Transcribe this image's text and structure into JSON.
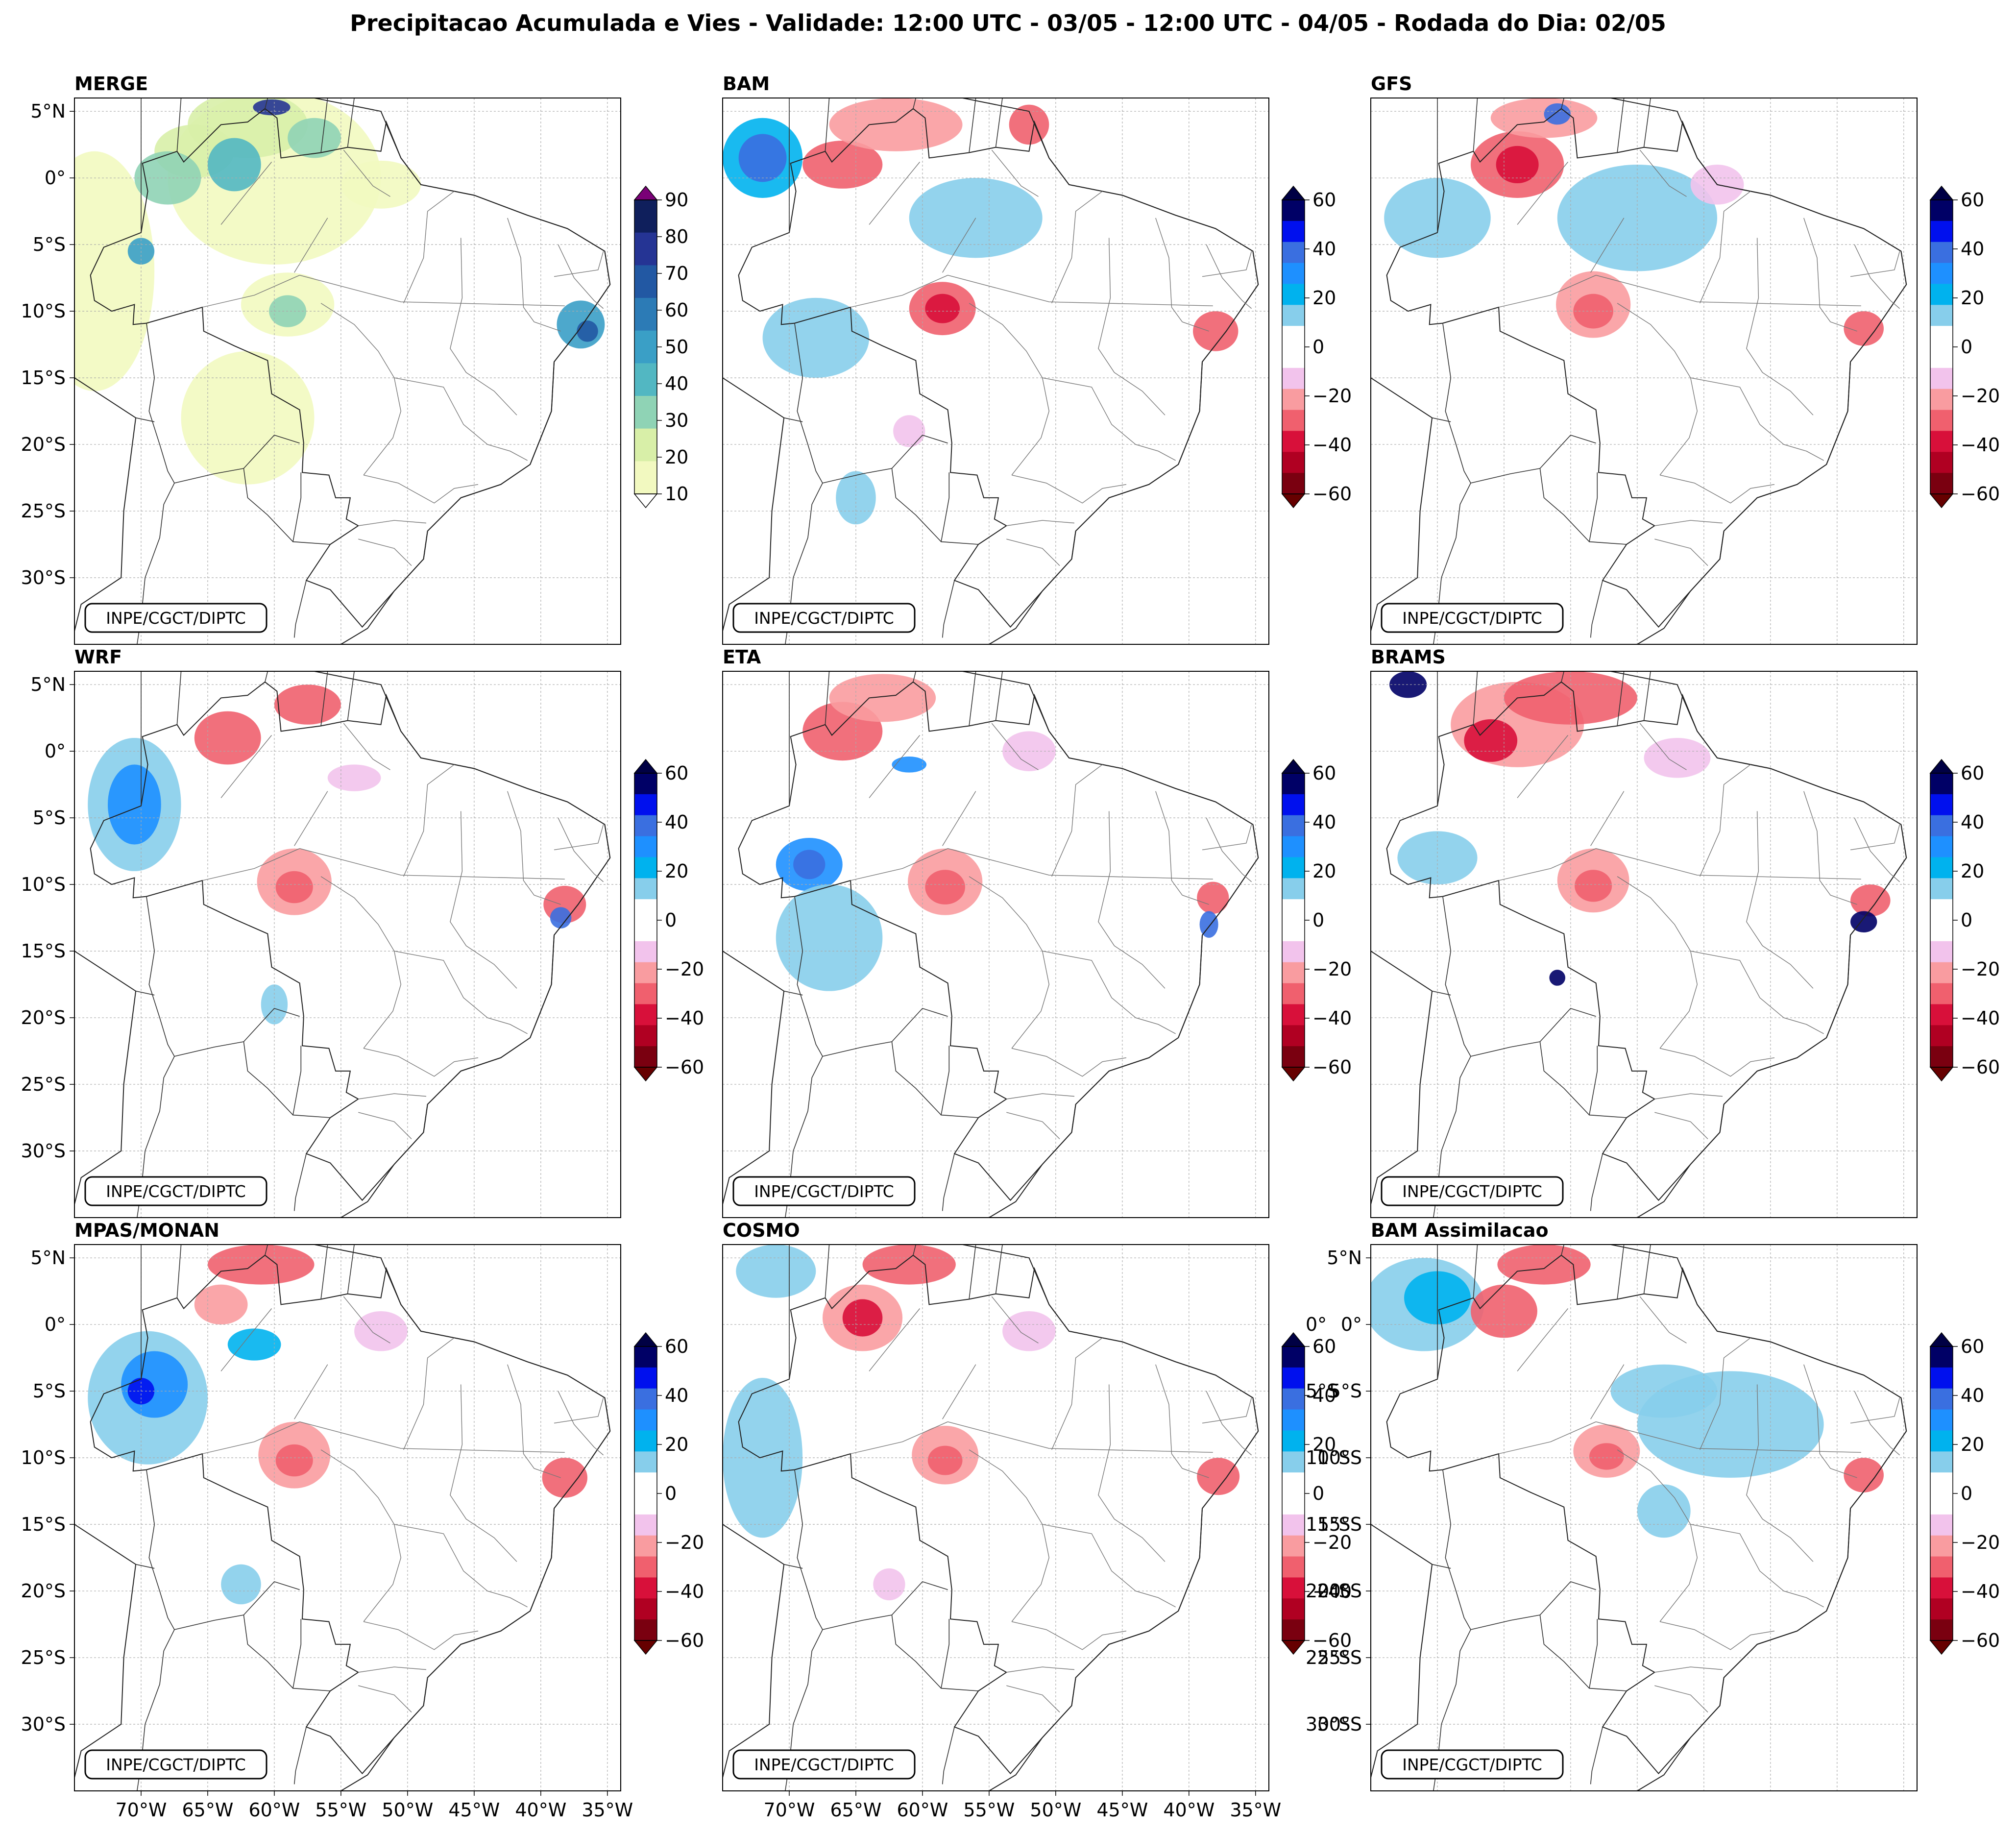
{
  "title": "Precipitacao Acumulada e Vies - Validade: 12:00 UTC - 03/05 - 12:00 UTC - 04/05 - Rodada do Dia: 02/05",
  "credit": "INPE/CGCT/DIPTC",
  "lat_ticks": [
    "5°N",
    "0°",
    "5°S",
    "10°S",
    "15°S",
    "20°S",
    "25°S",
    "30°S"
  ],
  "lon_ticks": [
    "70°W",
    "65°W",
    "60°W",
    "55°W",
    "50°W",
    "45°W",
    "40°W",
    "35°W"
  ],
  "panels": [
    {
      "label": "MERGE",
      "type": "precip"
    },
    {
      "label": "BAM",
      "type": "bias"
    },
    {
      "label": "GFS",
      "type": "bias"
    },
    {
      "label": "WRF",
      "type": "bias"
    },
    {
      "label": "ETA",
      "type": "bias"
    },
    {
      "label": "BRAMS",
      "type": "bias"
    },
    {
      "label": "MPAS/MONAN",
      "type": "bias"
    },
    {
      "label": "COSMO",
      "type": "bias"
    },
    {
      "label": "BAM Assimilacao",
      "type": "bias"
    }
  ],
  "colorbars": {
    "precip": {
      "ticks": [
        "10",
        "20",
        "30",
        "40",
        "50",
        "60",
        "70",
        "80",
        "90"
      ],
      "colors": [
        "#f2f9c0",
        "#d8efa8",
        "#8fd3b5",
        "#52b7c2",
        "#3a9fc6",
        "#2c7bb6",
        "#2258a3",
        "#253494",
        "#0f1f5c"
      ],
      "under_color": "#ffffff",
      "over_color": "#7a0177"
    },
    "bias": {
      "ticks": [
        "60",
        "40",
        "20",
        "0",
        "−20",
        "−40",
        "−60"
      ],
      "colors": [
        "#000066",
        "#0010ee",
        "#3a6fe0",
        "#1e90ff",
        "#00b2ee",
        "#87ceeb",
        "#ffffff",
        "#ffffff",
        "#f2c3ec",
        "#f99ca0",
        "#f0606e",
        "#d8103a",
        "#b00022",
        "#7a0010"
      ],
      "over_color": "#000044",
      "under_color": "#660000"
    }
  }
}
